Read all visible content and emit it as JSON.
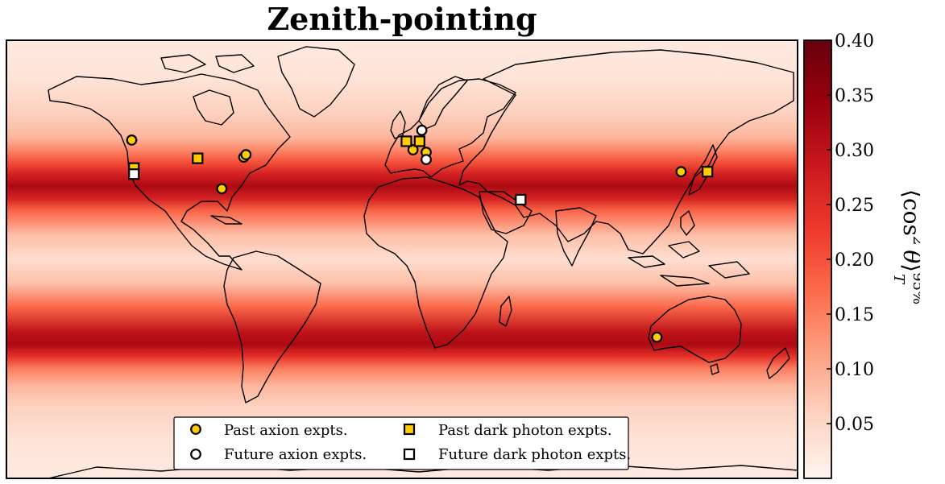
{
  "chart_data": {
    "type": "heatmap",
    "title": "Zenith-pointing",
    "map": "world equirectangular projection with coastlines",
    "x_range_lon": [
      -180,
      180
    ],
    "y_range_lat": [
      -90,
      90
    ],
    "field": {
      "description_source": "colour bands vary with latitude only",
      "latitude": [
        -90,
        -75,
        -60,
        -52,
        -45,
        -40,
        -35,
        -30,
        -20,
        -10,
        0,
        10,
        20,
        25,
        30,
        35,
        40,
        45,
        50,
        60,
        75,
        90
      ],
      "value": [
        0.02,
        0.03,
        0.06,
        0.09,
        0.15,
        0.24,
        0.32,
        0.3,
        0.18,
        0.08,
        0.04,
        0.08,
        0.18,
        0.27,
        0.32,
        0.27,
        0.2,
        0.14,
        0.09,
        0.06,
        0.03,
        0.02
      ]
    },
    "colorbar": {
      "label_parts": {
        "open": "⟨",
        "body": "cos",
        "power": "2",
        "theta": "θ",
        "close": "⟩",
        "sub": "T",
        "sup": "95%"
      },
      "range": [
        0.0,
        0.4
      ],
      "ticks": [
        0.05,
        0.1,
        0.15,
        0.2,
        0.25,
        0.3,
        0.35,
        0.4
      ],
      "tick_labels": [
        "0.05",
        "0.10",
        "0.15",
        "0.20",
        "0.25",
        "0.30",
        "0.35",
        "0.40"
      ],
      "colormap": "Reds",
      "colors": [
        "#fff5f0",
        "#fdd4c2",
        "#fca082",
        "#fb6b4b",
        "#ed392b",
        "#c9181d",
        "#99000d",
        "#67000d"
      ]
    },
    "series": [
      {
        "name": "Past axion expts.",
        "marker": "circle",
        "fill": "#ffcc00",
        "points": [
          [
            -123,
            49
          ],
          [
            -72,
            42
          ],
          [
            -71,
            43
          ],
          [
            -82,
            29
          ],
          [
            5,
            45
          ],
          [
            11,
            44
          ],
          [
            127,
            36
          ],
          [
            116,
            -32
          ]
        ]
      },
      {
        "name": "Future axion expts.",
        "marker": "circle",
        "fill": "#ffffff",
        "points": [
          [
            9,
            53
          ],
          [
            11,
            41
          ]
        ]
      },
      {
        "name": "Past dark photon expts.",
        "marker": "square",
        "fill": "#ffcc00",
        "points": [
          [
            -122,
            37.5
          ],
          [
            -93,
            41.5
          ],
          [
            2,
            48.5
          ],
          [
            8,
            48.5
          ],
          [
            139,
            36
          ]
        ]
      },
      {
        "name": "Future dark photon expts.",
        "marker": "square",
        "fill": "#ffffff",
        "points": [
          [
            -122,
            35
          ],
          [
            54,
            24.5
          ]
        ]
      }
    ],
    "legend": {
      "placement": "bottom-center",
      "columns": 2
    },
    "grid": false
  }
}
